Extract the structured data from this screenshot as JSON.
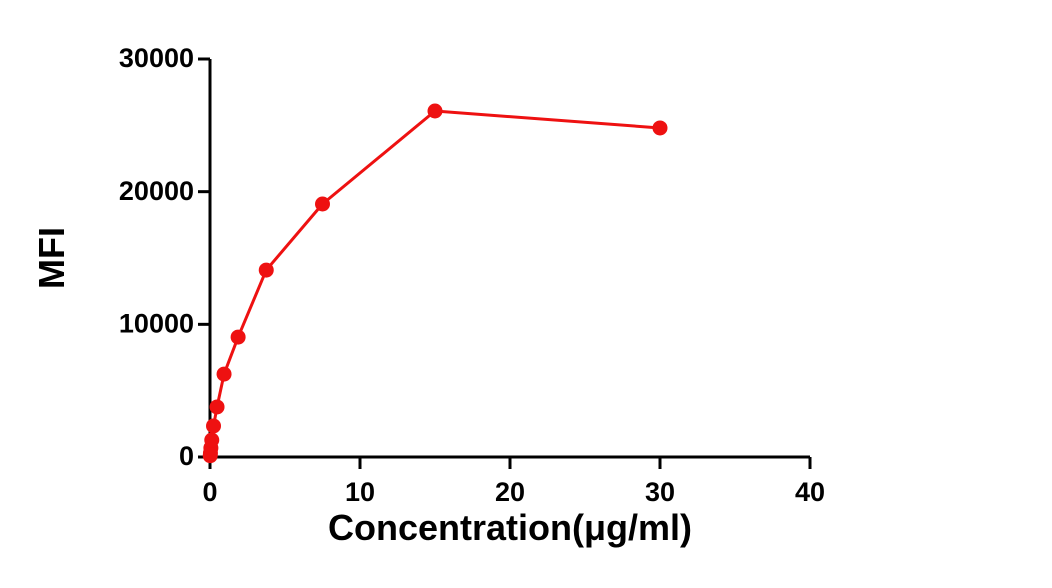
{
  "chart_data": {
    "type": "line",
    "x_label": "Concentration(μg/ml)",
    "y_label": "MFI",
    "series": [
      {
        "name": "MFI",
        "color": "#ee1111",
        "x": [
          0.0146,
          0.0293,
          0.0586,
          0.117,
          0.234,
          0.469,
          0.9375,
          1.875,
          3.75,
          7.5,
          15,
          30
        ],
        "values": [
          100,
          300,
          680,
          1280,
          2340,
          3770,
          6250,
          9040,
          14090,
          19070,
          26080,
          24800
        ]
      }
    ],
    "xlim": [
      0,
      40
    ],
    "xticks": [
      0,
      10,
      20,
      30,
      40
    ],
    "ylim": [
      0,
      30000
    ],
    "yticks": [
      0,
      10000,
      20000,
      30000
    ]
  }
}
